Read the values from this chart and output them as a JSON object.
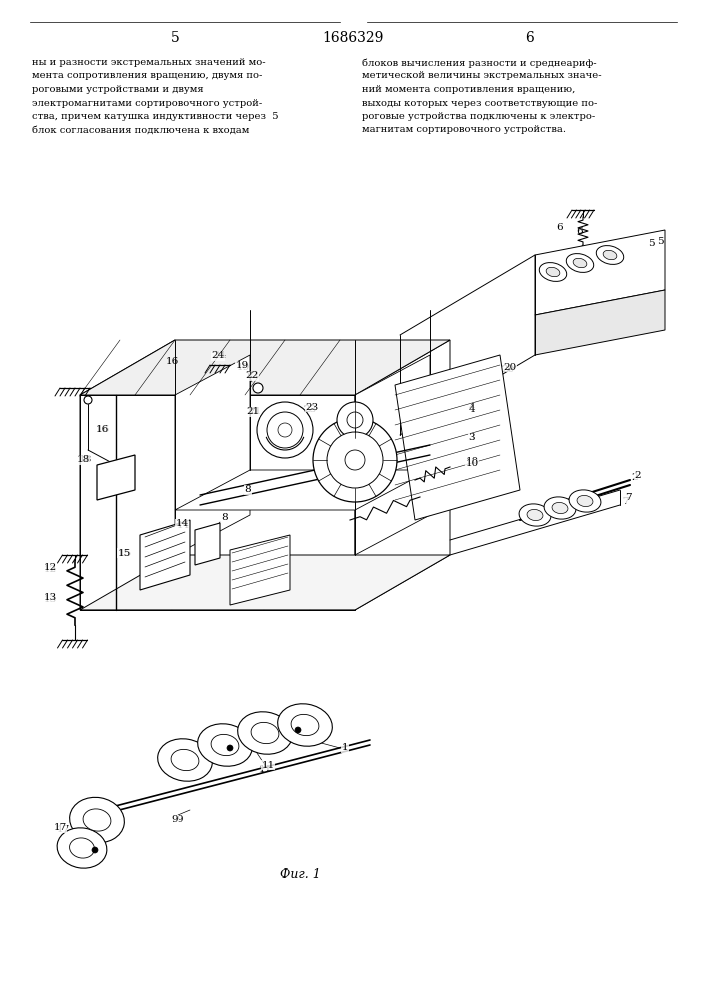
{
  "page_left": "5",
  "page_center": "1686329",
  "page_right": "6",
  "text_left_lines": [
    "ны и разности экстремальных значений мо-",
    "мента сопротивления вращению, двумя по-",
    "роговыми устройствами и двумя",
    "электромагнитами сортировочного устрой-",
    "ства, причем катушка индуктивности через  5",
    "блок согласования подключена к входам"
  ],
  "text_right_lines": [
    "блоков вычисления разности и среднеариф-",
    "метической величины экстремальных значе-",
    "ний момента сопротивления вращению,",
    "выходы которых через соответствующие по-",
    "роговые устройства подключены к электро-",
    "магнитам сортировочного устройства."
  ],
  "fig_label": "Фиг. 1",
  "bg": "#ffffff",
  "lc": "#000000"
}
